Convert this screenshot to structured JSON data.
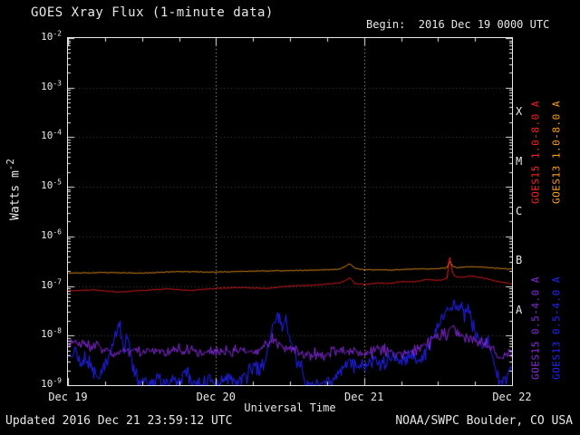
{
  "header": {
    "title": "GOES Xray Flux (1-minute data)",
    "begin_label": "Begin:  2016 Dec 19 0000 UTC"
  },
  "footer": {
    "updated": "Updated 2016 Dec 21 23:59:12 UTC",
    "credit": "NOAA/SWPC Boulder, CO USA"
  },
  "axes": {
    "ylabel_base": "Watts m",
    "ylabel_exp": "-2",
    "xlabel": "Universal Time",
    "x_tick_labels": [
      "Dec 19",
      "Dec 20",
      "Dec 21",
      "Dec 22"
    ],
    "y_tick_exponents": [
      -2,
      -3,
      -4,
      -5,
      -6,
      -7,
      -8,
      -9
    ]
  },
  "class_bands": [
    {
      "label": "X",
      "log_level": -3.5
    },
    {
      "label": "M",
      "log_level": -4.5
    },
    {
      "label": "C",
      "log_level": -5.5
    },
    {
      "label": "B",
      "log_level": -6.5
    },
    {
      "label": "A",
      "log_level": -7.5
    }
  ],
  "legend": [
    {
      "text": "GOES15 1.0-8.0 A",
      "color": "#ff2020",
      "column": 0,
      "row": 0
    },
    {
      "text": "GOES13 1.0-8.0 A",
      "color": "#ffa018",
      "column": 1,
      "row": 0
    },
    {
      "text": "GOES15 0.5-4.0 A",
      "color": "#8a2be2",
      "column": 0,
      "row": 1
    },
    {
      "text": "GOES13 0.5-4.0 A",
      "color": "#2424ff",
      "column": 1,
      "row": 1
    }
  ],
  "chart_data": {
    "type": "line",
    "title": "GOES Xray Flux (1-minute data)",
    "xlabel": "Universal Time",
    "ylabel": "Watts m^-2",
    "x_unit": "hours since 2016 Dec 19 0000 UTC",
    "x_range_hours": [
      0,
      72
    ],
    "x_day_ticks_hours": [
      0,
      24,
      48,
      72
    ],
    "y_scale": "log10",
    "y_range_log": [
      -9,
      -2
    ],
    "grid": {
      "vertical_dotted_at_hours": [
        24,
        48
      ],
      "horizontal_dotted_at_exponents": [
        -3,
        -4,
        -5,
        -6,
        -7,
        -8
      ]
    },
    "legend_position": "right-rotated",
    "seed": 20161219,
    "series": [
      {
        "name": "GOES13 1.0-8.0 A",
        "color": "#ffa018",
        "noise_log": 0.013,
        "seed": 11,
        "points_h_log10flux": [
          [
            0,
            -6.74
          ],
          [
            6,
            -6.73
          ],
          [
            12,
            -6.74
          ],
          [
            18,
            -6.71
          ],
          [
            24,
            -6.72
          ],
          [
            30,
            -6.7
          ],
          [
            36,
            -6.69
          ],
          [
            40,
            -6.68
          ],
          [
            44,
            -6.66
          ],
          [
            45.0,
            -6.6
          ],
          [
            45.6,
            -6.55
          ],
          [
            46.5,
            -6.65
          ],
          [
            48,
            -6.67
          ],
          [
            52,
            -6.68
          ],
          [
            56,
            -6.66
          ],
          [
            60,
            -6.65
          ],
          [
            61.4,
            -6.63
          ],
          [
            61.8,
            -6.5
          ],
          [
            62.3,
            -6.6
          ],
          [
            63,
            -6.63
          ],
          [
            65,
            -6.61
          ],
          [
            67,
            -6.62
          ],
          [
            69,
            -6.64
          ],
          [
            72,
            -6.66
          ]
        ]
      },
      {
        "name": "GOES15 1.0-8.0 A",
        "color": "#ff2020",
        "noise_log": 0.015,
        "seed": 22,
        "points_h_log10flux": [
          [
            0,
            -7.1
          ],
          [
            4,
            -7.08
          ],
          [
            8,
            -7.12
          ],
          [
            12,
            -7.09
          ],
          [
            16,
            -7.06
          ],
          [
            20,
            -7.09
          ],
          [
            24,
            -7.05
          ],
          [
            28,
            -7.03
          ],
          [
            32,
            -7.05
          ],
          [
            36,
            -7.0
          ],
          [
            40,
            -6.98
          ],
          [
            44,
            -6.94
          ],
          [
            45.0,
            -6.88
          ],
          [
            45.6,
            -6.83
          ],
          [
            46.5,
            -6.95
          ],
          [
            48,
            -6.97
          ],
          [
            50,
            -6.94
          ],
          [
            52,
            -6.95
          ],
          [
            54,
            -6.91
          ],
          [
            56,
            -6.92
          ],
          [
            58,
            -6.87
          ],
          [
            60,
            -6.89
          ],
          [
            61.4,
            -6.85
          ],
          [
            61.8,
            -6.38
          ],
          [
            62.2,
            -6.7
          ],
          [
            62.6,
            -6.8
          ],
          [
            63.5,
            -6.83
          ],
          [
            65,
            -6.8
          ],
          [
            66.5,
            -6.82
          ],
          [
            68,
            -6.86
          ],
          [
            70,
            -6.92
          ],
          [
            72,
            -6.96
          ]
        ]
      },
      {
        "name": "GOES13 0.5-4.0 A",
        "color": "#2424ff",
        "noise_log": 0.26,
        "seed": 33,
        "points_h_log10flux": [
          [
            0,
            -8.45
          ],
          [
            0.8,
            -8.25
          ],
          [
            1.5,
            -8.45
          ],
          [
            2.2,
            -8.6
          ],
          [
            3,
            -8.4
          ],
          [
            4,
            -8.7
          ],
          [
            5,
            -8.9
          ],
          [
            6,
            -8.6
          ],
          [
            7,
            -8.3
          ],
          [
            7.8,
            -7.95
          ],
          [
            8.3,
            -7.8
          ],
          [
            9,
            -8.3
          ],
          [
            9.6,
            -7.9
          ],
          [
            10.2,
            -8.5
          ],
          [
            11,
            -8.8
          ],
          [
            12,
            -9.0
          ],
          [
            13.5,
            -9.0
          ],
          [
            14.5,
            -8.8
          ],
          [
            15.5,
            -9.0
          ],
          [
            17,
            -8.85
          ],
          [
            18,
            -9.0
          ],
          [
            19,
            -8.7
          ],
          [
            20,
            -8.9
          ],
          [
            21.5,
            -9.0
          ],
          [
            23,
            -8.9
          ],
          [
            24.5,
            -9.0
          ],
          [
            26,
            -8.85
          ],
          [
            27.5,
            -9.0
          ],
          [
            29,
            -8.8
          ],
          [
            30,
            -8.6
          ],
          [
            31,
            -8.75
          ],
          [
            32,
            -8.4
          ],
          [
            33,
            -7.9
          ],
          [
            33.8,
            -7.6
          ],
          [
            34.5,
            -7.8
          ],
          [
            35.2,
            -7.65
          ],
          [
            36,
            -8.1
          ],
          [
            37,
            -8.5
          ],
          [
            38,
            -8.8
          ],
          [
            39,
            -9.0
          ],
          [
            40.5,
            -9.0
          ],
          [
            42,
            -8.9
          ],
          [
            43,
            -9.0
          ],
          [
            44,
            -8.7
          ],
          [
            45,
            -8.55
          ],
          [
            46,
            -8.6
          ],
          [
            47,
            -8.5
          ],
          [
            48,
            -8.6
          ],
          [
            49.5,
            -8.5
          ],
          [
            51,
            -8.55
          ],
          [
            52.5,
            -8.45
          ],
          [
            54,
            -8.5
          ],
          [
            55.5,
            -8.4
          ],
          [
            57,
            -8.45
          ],
          [
            58,
            -8.35
          ],
          [
            59,
            -8.1
          ],
          [
            60,
            -7.8
          ],
          [
            60.8,
            -7.55
          ],
          [
            61.5,
            -7.45
          ],
          [
            62,
            -7.5
          ],
          [
            62.5,
            -7.35
          ],
          [
            63,
            -7.55
          ],
          [
            63.6,
            -7.4
          ],
          [
            64.2,
            -7.6
          ],
          [
            64.8,
            -7.45
          ],
          [
            65.5,
            -7.7
          ],
          [
            66.3,
            -7.95
          ],
          [
            67,
            -8.2
          ],
          [
            67.8,
            -8.1
          ],
          [
            68.5,
            -8.35
          ],
          [
            69.3,
            -8.6
          ],
          [
            70,
            -8.9
          ],
          [
            70.6,
            -9.0
          ],
          [
            71.2,
            -8.75
          ],
          [
            72,
            -8.7
          ]
        ]
      },
      {
        "name": "GOES15 0.5-4.0 A",
        "color": "#8a2be2",
        "noise_log": 0.17,
        "seed": 44,
        "points_h_log10flux": [
          [
            0,
            -8.2
          ],
          [
            1,
            -8.1
          ],
          [
            2,
            -8.2
          ],
          [
            3,
            -8.15
          ],
          [
            4,
            -8.25
          ],
          [
            5,
            -8.2
          ],
          [
            6,
            -8.3
          ],
          [
            8,
            -8.35
          ],
          [
            10,
            -8.3
          ],
          [
            12,
            -8.35
          ],
          [
            14,
            -8.3
          ],
          [
            16,
            -8.35
          ],
          [
            18,
            -8.25
          ],
          [
            20,
            -8.3
          ],
          [
            22,
            -8.35
          ],
          [
            24,
            -8.35
          ],
          [
            26,
            -8.3
          ],
          [
            28,
            -8.3
          ],
          [
            30,
            -8.35
          ],
          [
            32,
            -8.2
          ],
          [
            33,
            -8.05
          ],
          [
            34,
            -8.15
          ],
          [
            35,
            -8.25
          ],
          [
            36,
            -8.3
          ],
          [
            38,
            -8.35
          ],
          [
            40,
            -8.4
          ],
          [
            42,
            -8.35
          ],
          [
            44,
            -8.3
          ],
          [
            46,
            -8.3
          ],
          [
            48,
            -8.35
          ],
          [
            50,
            -8.3
          ],
          [
            52,
            -8.3
          ],
          [
            54,
            -8.35
          ],
          [
            56,
            -8.3
          ],
          [
            58,
            -8.2
          ],
          [
            59,
            -8.1
          ],
          [
            60,
            -8.0
          ],
          [
            61,
            -7.95
          ],
          [
            62,
            -7.9
          ],
          [
            62.5,
            -7.82
          ],
          [
            63,
            -7.95
          ],
          [
            64,
            -8.0
          ],
          [
            65,
            -8.05
          ],
          [
            66,
            -8.1
          ],
          [
            67,
            -8.15
          ],
          [
            68,
            -8.2
          ],
          [
            69,
            -8.3
          ],
          [
            70,
            -8.45
          ],
          [
            71,
            -8.4
          ],
          [
            72,
            -8.35
          ]
        ]
      }
    ]
  }
}
